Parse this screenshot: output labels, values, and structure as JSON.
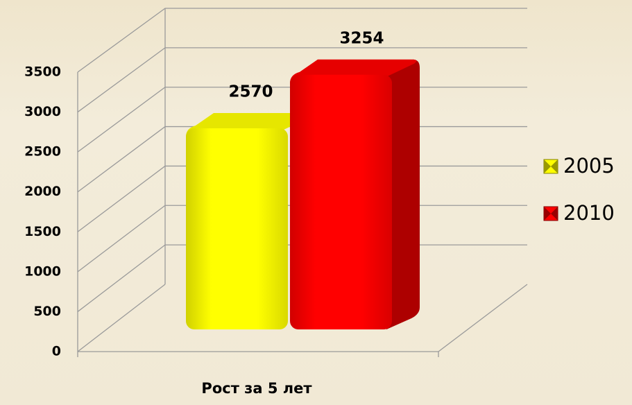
{
  "chart_data": {
    "type": "bar3d",
    "x_label": "Рост за 5 лет",
    "categories": [
      "Рост за 5 лет"
    ],
    "series": [
      {
        "name": "2005",
        "color": "#ffff00",
        "values": [
          2570
        ]
      },
      {
        "name": "2010",
        "color": "#ff0000",
        "values": [
          3254
        ]
      }
    ],
    "ylim": [
      0,
      3500
    ],
    "yticks": [
      0,
      500,
      1000,
      1500,
      2000,
      2500,
      3000,
      3500
    ],
    "grid": true,
    "legend": "right"
  }
}
